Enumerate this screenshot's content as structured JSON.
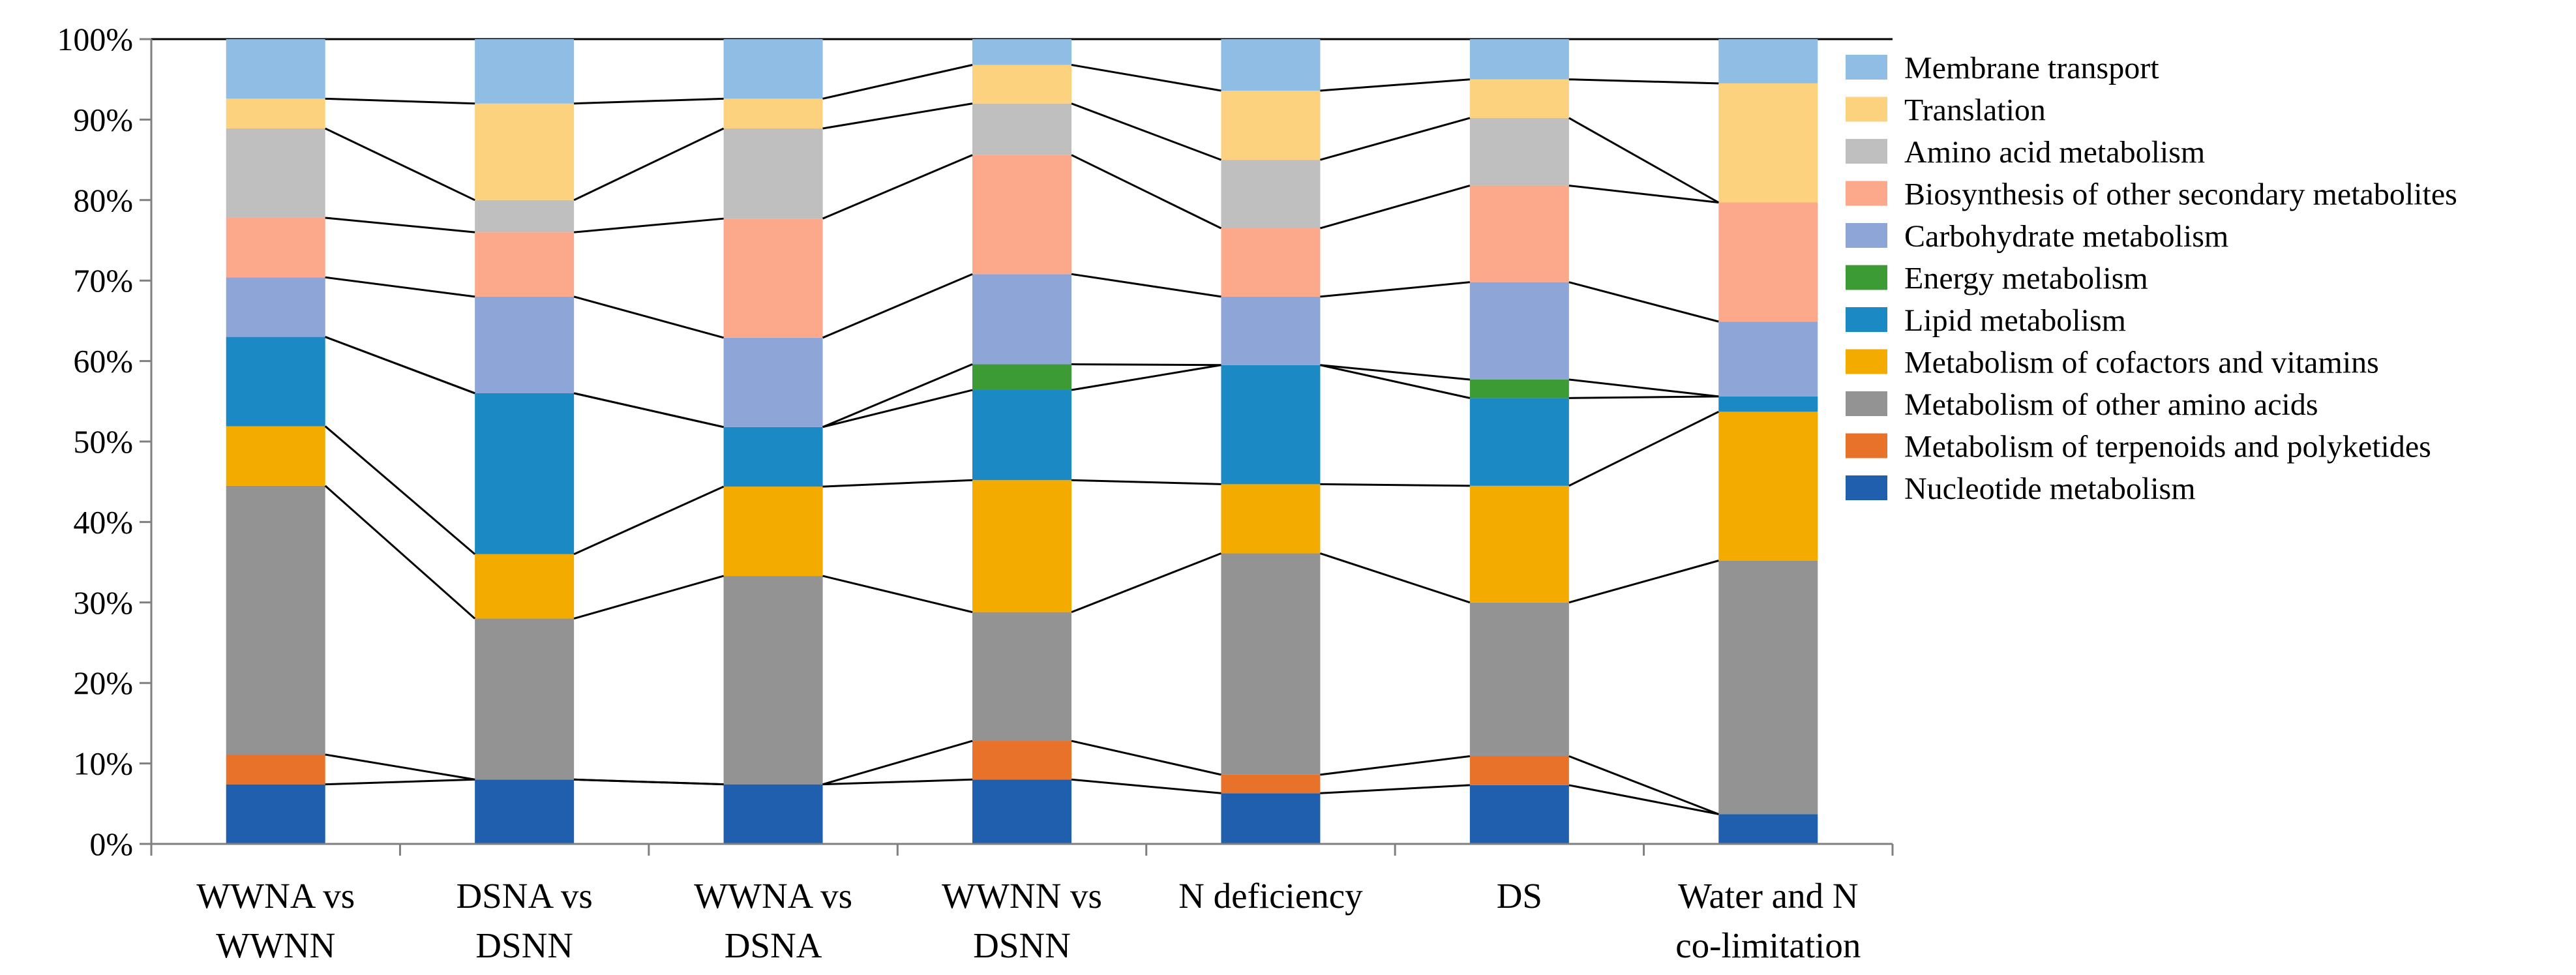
{
  "chart_data": {
    "type": "bar",
    "stacked": true,
    "percent": true,
    "title": "",
    "xlabel": "",
    "ylabel": "",
    "ylim": [
      0,
      100
    ],
    "y_ticks": [
      "0%",
      "10%",
      "20%",
      "30%",
      "40%",
      "50%",
      "60%",
      "70%",
      "80%",
      "90%",
      "100%"
    ],
    "legend_position": "right",
    "categories": [
      [
        "WWNA vs",
        "WWNN"
      ],
      [
        "DSNA vs",
        "DSNN"
      ],
      [
        "WWNA vs",
        "DSNA"
      ],
      [
        "WWNN vs",
        "DSNN"
      ],
      [
        "N deficiency"
      ],
      [
        "DS"
      ],
      [
        "Water and N",
        "co-limitation"
      ]
    ],
    "series": [
      {
        "name": "Nucleotide metabolism",
        "color": "#1f5fae",
        "values": [
          7.4,
          8.0,
          7.4,
          8.0,
          6.3,
          7.3,
          3.7
        ]
      },
      {
        "name": "Metabolism of terpenoids and polyketides",
        "color": "#e8722a",
        "values": [
          3.7,
          0.0,
          0.0,
          4.8,
          2.3,
          3.6,
          0.0
        ]
      },
      {
        "name": "Metabolism of other amino acids",
        "color": "#939393",
        "values": [
          33.4,
          20.0,
          25.9,
          16.0,
          27.5,
          19.1,
          31.5
        ]
      },
      {
        "name": "Metabolism of cofactors and vitamins",
        "color": "#f3ab00",
        "values": [
          7.4,
          8.0,
          11.1,
          16.4,
          8.6,
          14.5,
          18.5
        ]
      },
      {
        "name": "Lipid metabolism",
        "color": "#1b8ac4",
        "values": [
          11.1,
          20.0,
          7.4,
          11.2,
          14.8,
          10.9,
          1.9
        ]
      },
      {
        "name": "Energy metabolism",
        "color": "#3c9b35",
        "values": [
          0.0,
          0.0,
          0.0,
          3.2,
          0.0,
          2.3,
          0.0
        ]
      },
      {
        "name": "Carbohydrate metabolism",
        "color": "#8ea5d8",
        "values": [
          7.4,
          12.0,
          11.1,
          11.2,
          8.5,
          12.1,
          9.3
        ]
      },
      {
        "name": "Biosynthesis of other secondary metabolites",
        "color": "#fca88b",
        "values": [
          7.4,
          8.0,
          14.8,
          14.8,
          8.5,
          12.0,
          14.8
        ]
      },
      {
        "name": "Amino acid metabolism",
        "color": "#bfbfbf",
        "values": [
          11.1,
          4.0,
          11.2,
          6.4,
          8.5,
          8.4,
          0.0
        ]
      },
      {
        "name": "Translation",
        "color": "#fdd27f",
        "values": [
          3.7,
          12.0,
          3.7,
          4.8,
          8.6,
          4.8,
          14.8
        ]
      },
      {
        "name": "Membrane transport",
        "color": "#8fbde3",
        "values": [
          7.4,
          8.0,
          7.4,
          3.2,
          6.4,
          5.0,
          5.5
        ]
      }
    ]
  }
}
